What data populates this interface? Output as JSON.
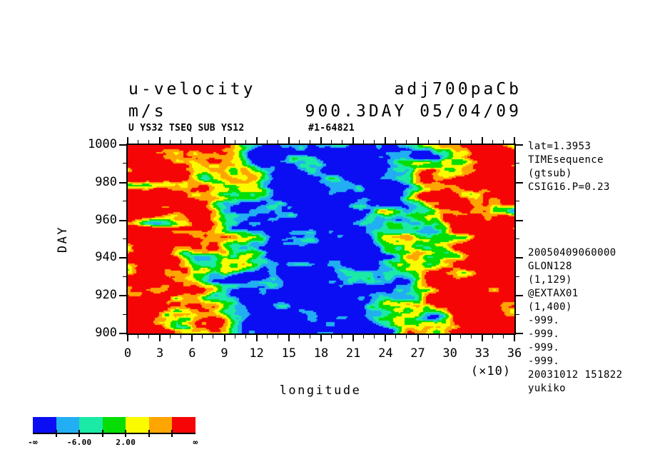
{
  "header": {
    "title_left_line1": "u-velocity",
    "title_left_line2": "m/s",
    "title_right_line1": "adj700paCb",
    "title_right_line2": "900.3DAY 05/04/09",
    "sub_left": "U YS32 TSEQ SUB YS12",
    "sub_right": "#1-64821"
  },
  "right_panel": {
    "lines_top": [
      "lat=1.3953",
      "TIMEsequence",
      "(gtsub)",
      "CSIG16.P=0.23"
    ],
    "lines_bottom": [
      "20050409060000",
      "GLON128",
      "(1,129)",
      "@EXTAX01",
      "(1,400)",
      "-999.",
      "-999.",
      "-999.",
      "-999.",
      "20031012 151822",
      "yukiko"
    ]
  },
  "chart_data": {
    "type": "heatmap",
    "title": "u-velocity",
    "units": "m/s",
    "xlabel": "longitude",
    "x_unit_note": "(×10)",
    "ylabel": "DAY",
    "xlim": [
      0,
      360
    ],
    "ylim": [
      900,
      1000
    ],
    "x_major_ticks": [
      0,
      3,
      6,
      9,
      12,
      15,
      18,
      21,
      24,
      27,
      30,
      33,
      36
    ],
    "x_tick_scale": 10,
    "x_minor_step": 1,
    "y_major_ticks": [
      1000,
      980,
      960,
      940,
      920,
      900
    ],
    "y_minor_step": 10,
    "grid": false,
    "levels": [
      -10,
      -6,
      -2,
      2,
      6,
      10
    ],
    "palette": [
      "#0b0df2",
      "#22aef2",
      "#1aeaa6",
      "#05dd05",
      "#fbfb00",
      "#ffa502",
      "#f50505"
    ],
    "colorbar": {
      "segments": 7,
      "labels": [
        {
          "pos": 0,
          "text": "-∞"
        },
        {
          "pos": 2,
          "text": "-6.00"
        },
        {
          "pos": 4,
          "text": "2.00"
        },
        {
          "pos": 7,
          "text": "∞"
        }
      ]
    },
    "field_description": "Hovmoller time-longitude section of zonal wind: strong positive (red, u>10) near longitudes 0-70 and 270-360, strong negative core (blue, u<-10) centered near longitude 180 drifting from ~192 at day 1000 to ~168 at day 900, with streaky noisy transition bands of cyan/green/yellow/orange and diagonal wave features",
    "synthesis": {
      "seed": 7,
      "base_amp": 18,
      "center_lon_at_day950": 180,
      "center_drift_per_day": 0.25,
      "diag": {
        "amp": 5.5,
        "lon_wavelength": 80,
        "day_wavelength": 45
      },
      "noise1": {
        "amp": 8,
        "lon_scale": 24,
        "day_scale": 4.5
      },
      "noise2": {
        "amp": 5,
        "lon_scale": 9,
        "day_scale": 2.2
      },
      "spikes": {
        "amp": 16,
        "lon_scale": 40,
        "day_scale": 7
      }
    }
  }
}
